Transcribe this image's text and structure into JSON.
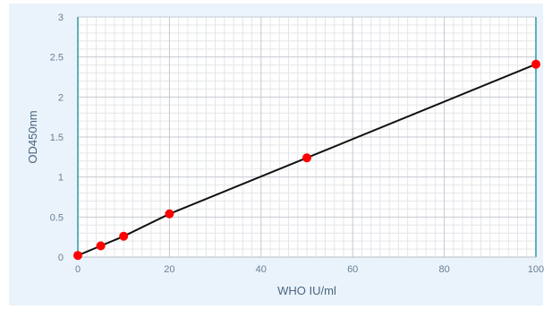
{
  "chart_data": {
    "type": "scatter",
    "title": "",
    "xlabel": "WHO IU/ml",
    "ylabel": "OD450nm",
    "xlim": [
      0,
      100
    ],
    "ylim": [
      0,
      3
    ],
    "x_ticks": [
      "0",
      "20",
      "40",
      "60",
      "80",
      "100"
    ],
    "y_ticks": [
      "0",
      "0.5",
      "1",
      "1.5",
      "2",
      "2.5",
      "3"
    ],
    "grid": true,
    "minor_grid": true,
    "legend": "none",
    "series": [
      {
        "points": [
          {
            "x": 0,
            "y": 0.02
          },
          {
            "x": 5,
            "y": 0.14
          },
          {
            "x": 10,
            "y": 0.26
          },
          {
            "x": 20,
            "y": 0.54
          },
          {
            "x": 50,
            "y": 1.24
          },
          {
            "x": 100,
            "y": 2.41
          }
        ],
        "marker_color": "#ff0000",
        "line_color": "#111111"
      }
    ]
  }
}
